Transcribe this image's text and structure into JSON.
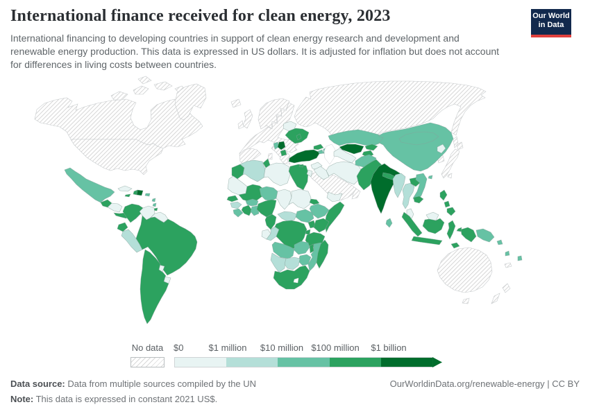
{
  "header": {
    "title": "International finance received for clean energy, 2023",
    "subtitle": "International financing to developing countries in support of clean energy research and development and renewable energy production. This data is expressed in US dollars. It is adjusted for inflation but does not account for differences in living costs between countries.",
    "logo": {
      "line1": "Our World",
      "line2": "in Data",
      "bg_color": "#12294d",
      "accent_color": "#e0403d"
    }
  },
  "legend": {
    "no_data_label": "No data",
    "tick_labels": [
      "$0",
      "$1 million",
      "$10 million",
      "$100 million",
      "$1 billion"
    ],
    "bin_colors": [
      "#e8f4f3",
      "#b4dfd8",
      "#66c2a4",
      "#2ca25f",
      "#006d2c"
    ],
    "no_data_pattern": "diagonal-hatch"
  },
  "footer": {
    "data_source_label": "Data source:",
    "data_source_text": "Data from multiple sources compiled by the UN",
    "note_label": "Note:",
    "note_text": "This data is expressed in constant 2021 US$.",
    "link_text": "OurWorldinData.org/renewable-energy | CC BY"
  },
  "chart_data": {
    "type": "choropleth_map",
    "title": "International finance received for clean energy, 2023",
    "unit": "US$ (constant 2021)",
    "legend_position": "bottom",
    "bins": [
      {
        "range": "$0 - $1 million",
        "color": "#e8f4f3",
        "countries": [
          "Cuba",
          "Honduras",
          "Nicaragua",
          "Venezuela",
          "Guyana",
          "Suriname",
          "Paraguay",
          "Uruguay",
          "Libya",
          "Chad",
          "Sudan",
          "Mauritania",
          "Gabon",
          "Belarus",
          "Syria",
          "Iraq",
          "Jordan",
          "Iran",
          "Yemen",
          "Turkmenistan",
          "North Korea",
          "Malaysia"
        ]
      },
      {
        "range": "$1 million - $10 million",
        "color": "#b4dfd8",
        "countries": [
          "Peru",
          "Algeria",
          "Guinea",
          "Central African Republic",
          "Congo",
          "Namibia",
          "Botswana",
          "Myanmar",
          "Thailand"
        ]
      },
      {
        "range": "$10 million - $100 million",
        "color": "#66c2a4",
        "countries": [
          "Mexico",
          "Puerto Rico",
          "China",
          "Mongolia",
          "Kazakhstan",
          "Afghanistan",
          "Azerbaijan",
          "Armenia",
          "Ethiopia",
          "South Sudan",
          "Sierra Leone",
          "Ghana",
          "Togo",
          "Benin",
          "Burkina Faso",
          "Niger",
          "Angola",
          "Zambia",
          "Mozambique",
          "Zimbabwe",
          "Vietnam",
          "Bhutan",
          "Sri Lanka",
          "Papua New Guinea",
          "Solomon Islands",
          "Vanuatu",
          "Fiji"
        ]
      },
      {
        "range": "$100 million - $1 billion",
        "color": "#2ca25f",
        "countries": [
          "Guatemala",
          "Costa Rica",
          "Panama",
          "Jamaica",
          "Haiti",
          "Colombia",
          "Ecuador",
          "Brazil",
          "Bolivia",
          "Argentina",
          "Chile",
          "Morocco",
          "Tunisia",
          "Egypt",
          "Senegal",
          "Mali",
          "Cote d'Ivoire",
          "Nigeria",
          "Cameroon",
          "DR Congo",
          "Uganda",
          "Kenya",
          "Tanzania",
          "Malawi",
          "South Africa",
          "Madagascar",
          "Somalia",
          "Eritrea",
          "Ukraine",
          "Moldova",
          "Albania",
          "Georgia",
          "Kyrgyzstan",
          "Tajikistan",
          "Pakistan",
          "Nepal",
          "Laos",
          "Cambodia",
          "Philippines",
          "Indonesia",
          "Timor-Leste",
          "Cyprus"
        ]
      },
      {
        "range": "$1 billion and over",
        "color": "#006d2c",
        "countries": [
          "India",
          "Turkey",
          "Uzbekistan",
          "Bangladesh",
          "Serbia",
          "Dominican Republic"
        ]
      }
    ],
    "no_data": {
      "pattern": "hatched",
      "countries": [
        "United States",
        "Canada",
        "Greenland",
        "Iceland",
        "Western Europe",
        "Russia",
        "Saudi Arabia",
        "Oman",
        "Japan",
        "South Korea",
        "Taiwan",
        "Australia",
        "New Zealand",
        "New Caledonia"
      ]
    }
  }
}
